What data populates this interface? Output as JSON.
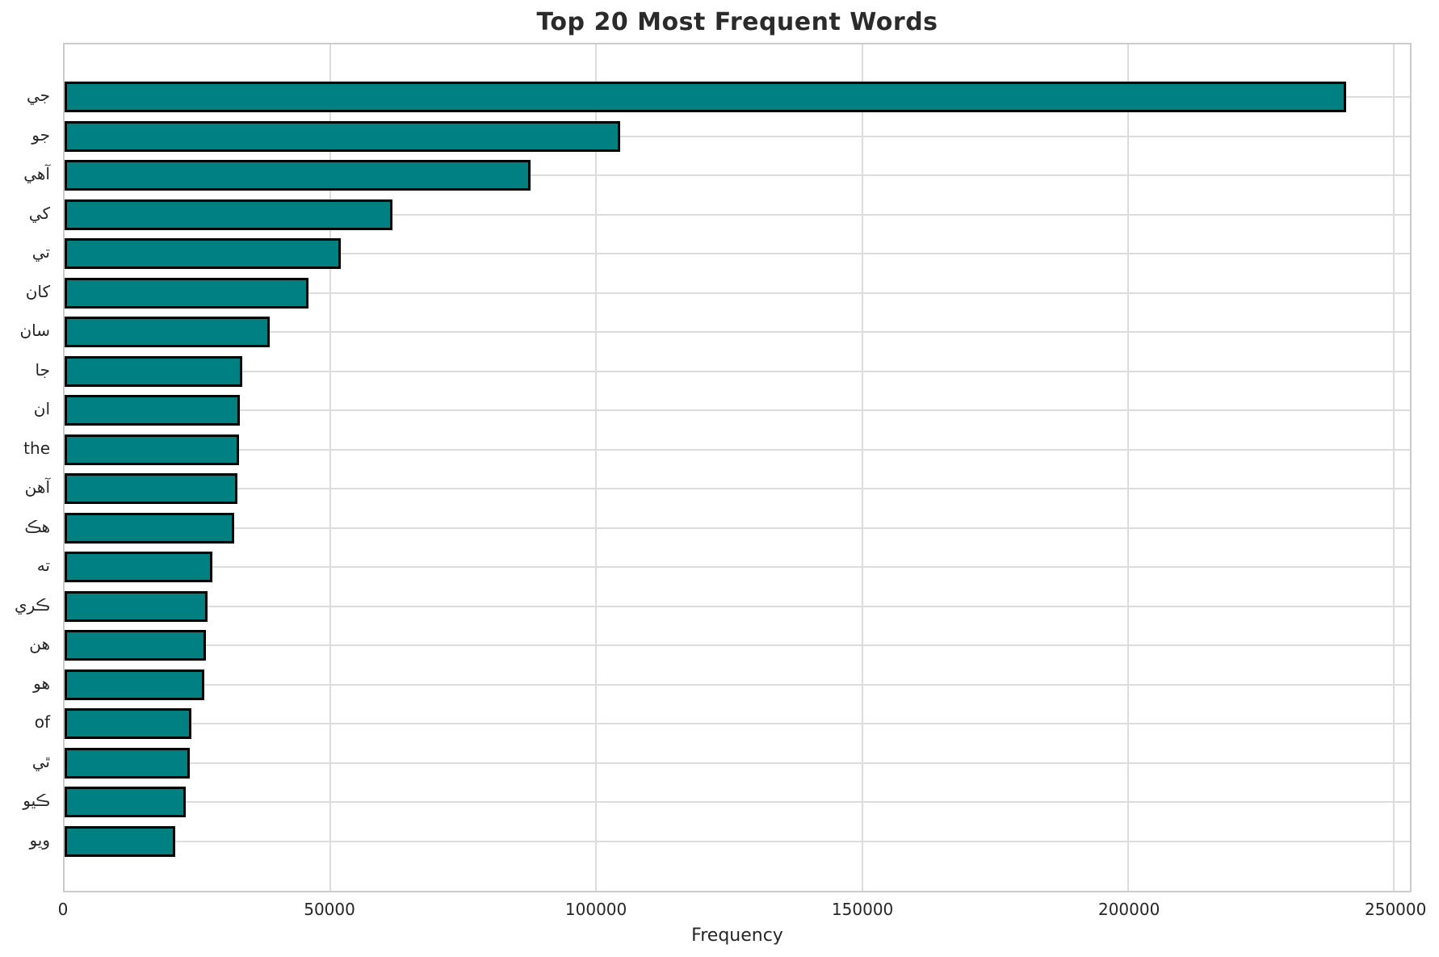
{
  "chart_data": {
    "type": "bar",
    "orientation": "horizontal",
    "title": "Top 20 Most Frequent Words",
    "xlabel": "Frequency",
    "ylabel": "",
    "xlim": [
      0,
      253000
    ],
    "x_ticks": [
      0,
      50000,
      100000,
      150000,
      200000,
      250000
    ],
    "x_tick_labels": [
      "0",
      "50000",
      "100000",
      "150000",
      "200000",
      "250000"
    ],
    "grid": true,
    "legend": "none",
    "bar_color": "#008080",
    "bar_edge_color": "#000000",
    "categories": [
      "جي",
      "جو",
      "آهي",
      "کي",
      "تي",
      "کان",
      "سان",
      "جا",
      "ان",
      "the",
      "آهن",
      "هڪ",
      "ته",
      "ڪري",
      "هن",
      "هو",
      "of",
      "ٿي",
      "ڪيو",
      "ويو"
    ],
    "values": [
      241000,
      104500,
      87600,
      61600,
      52000,
      45800,
      38600,
      33400,
      33000,
      32800,
      32500,
      31900,
      27800,
      26900,
      26600,
      26300,
      23900,
      23600,
      22800,
      20800
    ]
  }
}
